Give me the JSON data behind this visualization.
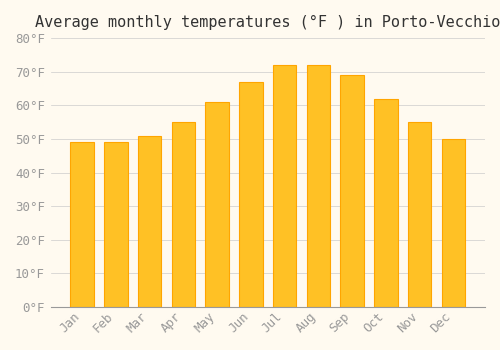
{
  "title": "Average monthly temperatures (°F ) in Porto-Vecchio",
  "months": [
    "Jan",
    "Feb",
    "Mar",
    "Apr",
    "May",
    "Jun",
    "Jul",
    "Aug",
    "Sep",
    "Oct",
    "Nov",
    "Dec"
  ],
  "values": [
    49,
    49,
    51,
    55,
    61,
    67,
    72,
    72,
    69,
    62,
    55,
    50
  ],
  "bar_color_face": "#FFC125",
  "bar_color_edge": "#FFA500",
  "background_color": "#FFFAF0",
  "grid_color": "#CCCCCC",
  "ylim": [
    0,
    80
  ],
  "yticks": [
    0,
    10,
    20,
    30,
    40,
    50,
    60,
    70,
    80
  ],
  "ytick_labels": [
    "0°F",
    "10°F",
    "20°F",
    "30°F",
    "40°F",
    "50°F",
    "60°F",
    "70°F",
    "80°F"
  ],
  "title_fontsize": 11,
  "tick_fontsize": 9,
  "tick_color": "#999999",
  "font_family": "monospace"
}
